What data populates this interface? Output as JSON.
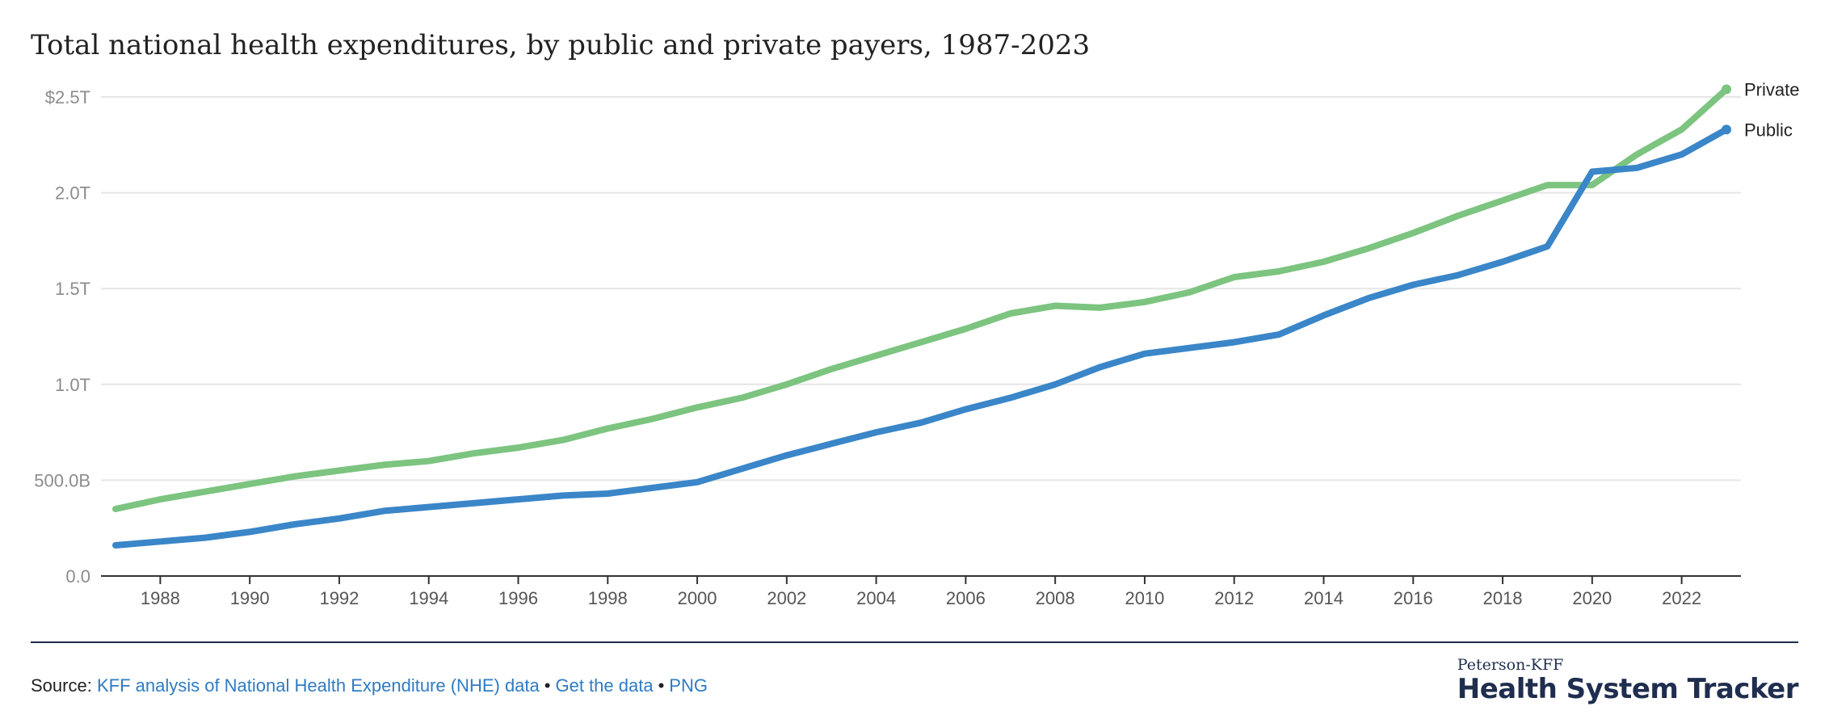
{
  "title": "Total national health expenditures, by public and private payers, 1987-2023",
  "footer": {
    "source_label": "Source:",
    "links": [
      "KFF analysis of National Health Expenditure (NHE) data",
      "Get the data",
      "PNG"
    ],
    "separator": "•"
  },
  "brand": {
    "small": "Peterson-KFF",
    "big": "Health System Tracker"
  },
  "colors": {
    "private": "#7cc47f",
    "public": "#3a86c8",
    "grid": "#e6e6e6",
    "axis": "#333333"
  },
  "chart_data": {
    "type": "line",
    "title": "Total national health expenditures, by public and private payers, 1987-2023",
    "xlabel": "",
    "ylabel": "",
    "x": [
      1987,
      1988,
      1989,
      1990,
      1991,
      1992,
      1993,
      1994,
      1995,
      1996,
      1997,
      1998,
      1999,
      2000,
      2001,
      2002,
      2003,
      2004,
      2005,
      2006,
      2007,
      2008,
      2009,
      2010,
      2011,
      2012,
      2013,
      2014,
      2015,
      2016,
      2017,
      2018,
      2019,
      2020,
      2021,
      2022,
      2023
    ],
    "xlim": [
      1987,
      2023
    ],
    "ylim": [
      0,
      2.5
    ],
    "x_ticks": [
      1988,
      1990,
      1992,
      1994,
      1996,
      1998,
      2000,
      2002,
      2004,
      2006,
      2008,
      2010,
      2012,
      2014,
      2016,
      2018,
      2020,
      2022
    ],
    "y_ticks": [
      {
        "value": 0,
        "label": "0.0"
      },
      {
        "value": 0.5,
        "label": "500.0B"
      },
      {
        "value": 1.0,
        "label": "1.0T"
      },
      {
        "value": 1.5,
        "label": "1.5T"
      },
      {
        "value": 2.0,
        "label": "2.0T"
      },
      {
        "value": 2.5,
        "label": "$2.5T"
      }
    ],
    "grid": true,
    "legend": "direct labels at line ends (right)",
    "series": [
      {
        "name": "Private",
        "color": "#7cc47f",
        "values": [
          0.35,
          0.4,
          0.44,
          0.48,
          0.52,
          0.55,
          0.58,
          0.6,
          0.64,
          0.67,
          0.71,
          0.77,
          0.82,
          0.88,
          0.93,
          1.0,
          1.08,
          1.15,
          1.22,
          1.29,
          1.37,
          1.41,
          1.4,
          1.43,
          1.48,
          1.56,
          1.59,
          1.64,
          1.71,
          1.79,
          1.88,
          1.96,
          2.04,
          2.04,
          2.2,
          2.33,
          2.54
        ]
      },
      {
        "name": "Public",
        "color": "#3a86c8",
        "values": [
          0.16,
          0.18,
          0.2,
          0.23,
          0.27,
          0.3,
          0.34,
          0.36,
          0.38,
          0.4,
          0.42,
          0.43,
          0.46,
          0.49,
          0.56,
          0.63,
          0.69,
          0.75,
          0.8,
          0.87,
          0.93,
          1.0,
          1.09,
          1.16,
          1.19,
          1.22,
          1.26,
          1.36,
          1.45,
          1.52,
          1.57,
          1.64,
          1.72,
          2.11,
          2.13,
          2.2,
          2.33
        ]
      }
    ]
  }
}
